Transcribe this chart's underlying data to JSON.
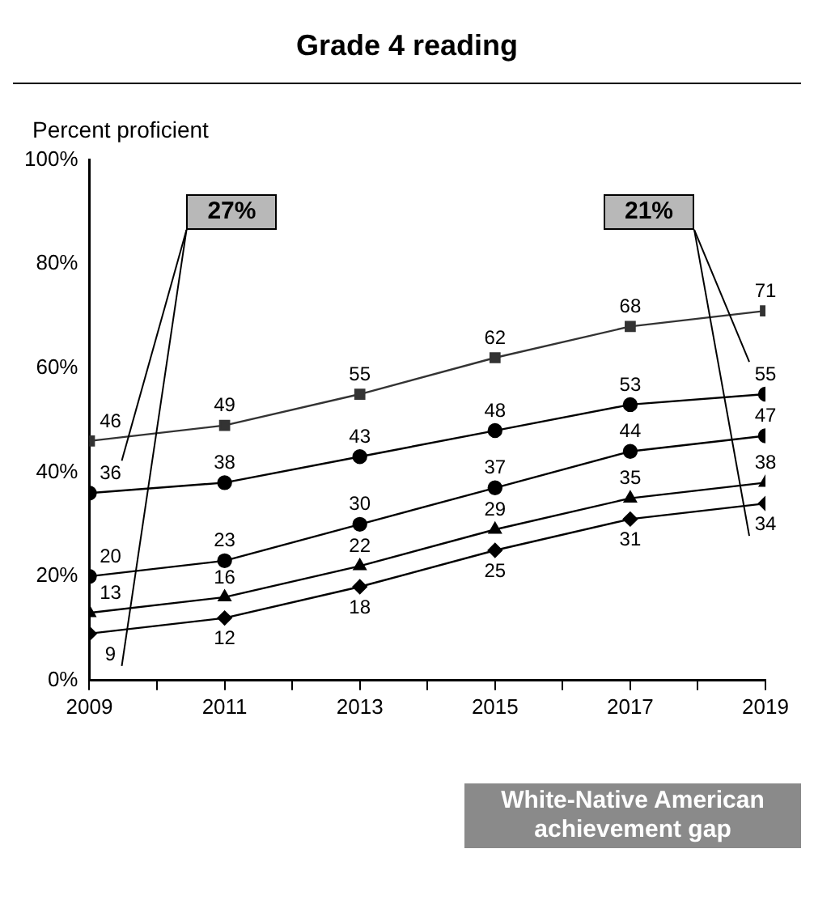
{
  "chart_data": {
    "type": "line",
    "title": "Grade 4 reading",
    "ylabel": "Percent proficient",
    "x": [
      2009,
      2011,
      2013,
      2015,
      2017,
      2019
    ],
    "xlim": [
      2009,
      2019
    ],
    "xticks": [
      2009,
      {
        "value": 2010,
        "label": null
      },
      2011,
      {
        "value": 2012,
        "label": null
      },
      2013,
      {
        "value": 2014,
        "label": null
      },
      2015,
      {
        "value": 2016,
        "label": null
      },
      2017,
      {
        "value": 2018,
        "label": null
      },
      2019
    ],
    "ylim": [
      0,
      100
    ],
    "yticks": [
      {
        "value": 0,
        "label": "0%"
      },
      {
        "value": 20,
        "label": "20%"
      },
      {
        "value": 40,
        "label": "40%"
      },
      {
        "value": 60,
        "label": "60%"
      },
      {
        "value": 80,
        "label": "80%"
      },
      {
        "value": 100,
        "label": "100%"
      }
    ],
    "grid": false,
    "legend": false,
    "data_labels": true,
    "series": [
      {
        "color": "#333333",
        "marker": "square",
        "values": [
          46,
          49,
          55,
          62,
          68,
          71
        ]
      },
      {
        "color": "#000000",
        "marker": "circle",
        "values": [
          36,
          38,
          43,
          48,
          53,
          55
        ]
      },
      {
        "color": "#000000",
        "marker": "circle",
        "values": [
          20,
          23,
          30,
          37,
          44,
          47
        ]
      },
      {
        "color": "#000000",
        "marker": "triangle",
        "values": [
          13,
          16,
          22,
          29,
          35,
          38
        ]
      },
      {
        "color": "#000000",
        "marker": "diamond",
        "values": [
          9,
          12,
          18,
          25,
          31,
          34
        ]
      }
    ],
    "annotations": [
      "27%",
      "21%",
      "White-Native American achievement gap"
    ]
  }
}
